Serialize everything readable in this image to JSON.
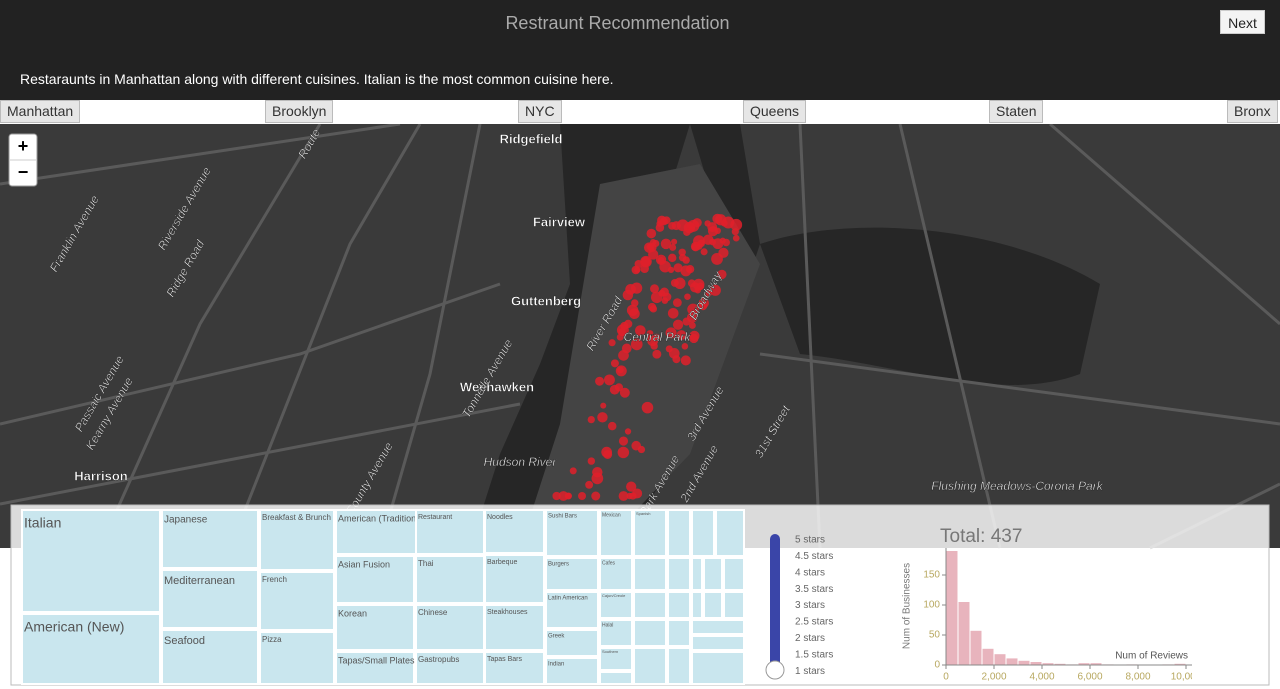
{
  "header": {
    "title": "Restraunt Recommendation",
    "next": "Next",
    "description": "Restaraunts in Manhattan along with different cuisines. Italian is the most common cuisine here."
  },
  "tabs": [
    "Manhattan",
    "Brooklyn",
    "NYC",
    "Queens",
    "Staten",
    "Bronx"
  ],
  "map": {
    "zoom_in": "+",
    "zoom_out": "−",
    "labels": [
      "Ridgefield",
      "Fairview",
      "Guttenberg",
      "Weehawken",
      "Harrison",
      "Central Park",
      "Hudson River",
      "Flushing Meadows-Corona Park",
      "Broadway",
      "3rd Avenue",
      "Park Avenue",
      "2nd Avenue",
      "River Road",
      "Tonnelle Avenue",
      "County Avenue",
      "31st Street",
      "Franklin Avenue",
      "Riverside Avenue",
      "Ridge Road",
      "Passaic Avenue",
      "Kearny Avenue",
      "Route"
    ]
  },
  "treemap": {
    "cells": [
      "Italian",
      "American (New)",
      "Japanese",
      "Mediterranean",
      "Seafood",
      "Breakfast & Brunch",
      "French",
      "Pizza",
      "American (Traditional)",
      "Asian Fusion",
      "Korean",
      "Tapas/Small Plates",
      "Restaurant",
      "Thai",
      "Chinese",
      "Gastropubs",
      "Noodles",
      "Barbeque",
      "Steakhouses",
      "Tapas Bars",
      "Sushi Bars",
      "Burgers",
      "Latin American",
      "Greek",
      "Indian",
      "Mexican",
      "Cafes",
      "Cajun/Creole",
      "Halal",
      "Southern",
      "Spanish"
    ]
  },
  "stars": [
    "5 stars",
    "4.5 stars",
    "4 stars",
    "3.5 stars",
    "3 stars",
    "2.5 stars",
    "2 stars",
    "1.5 stars",
    "1 stars"
  ],
  "chart_data": {
    "type": "histogram",
    "title": "Total: 437",
    "x_label": "Num of Reviews",
    "y_label": "Num of Businesses",
    "bins": [
      0,
      500,
      1000,
      1500,
      2000,
      2500,
      3000,
      3500,
      4000,
      4500,
      5000,
      5500,
      6000,
      6500,
      7000,
      7500,
      8000,
      8500,
      9000,
      9500,
      10000
    ],
    "values": [
      190,
      105,
      57,
      27,
      18,
      11,
      7,
      5,
      3,
      2,
      1,
      3,
      3,
      1,
      0,
      1,
      0,
      0,
      1,
      2
    ],
    "color": "#e8b4bd",
    "xlim": [
      0,
      10000
    ],
    "xticks": [
      0,
      {
        "value": 2000,
        "label": "2,000"
      },
      {
        "value": 4000,
        "label": "4,000"
      },
      {
        "value": 6000,
        "label": "6,000"
      },
      {
        "value": 8000,
        "label": "8,000"
      },
      {
        "value": 10000,
        "label": "10,000"
      }
    ],
    "ylim": [
      0,
      195
    ],
    "yticks": [
      0,
      50,
      100,
      150
    ]
  }
}
